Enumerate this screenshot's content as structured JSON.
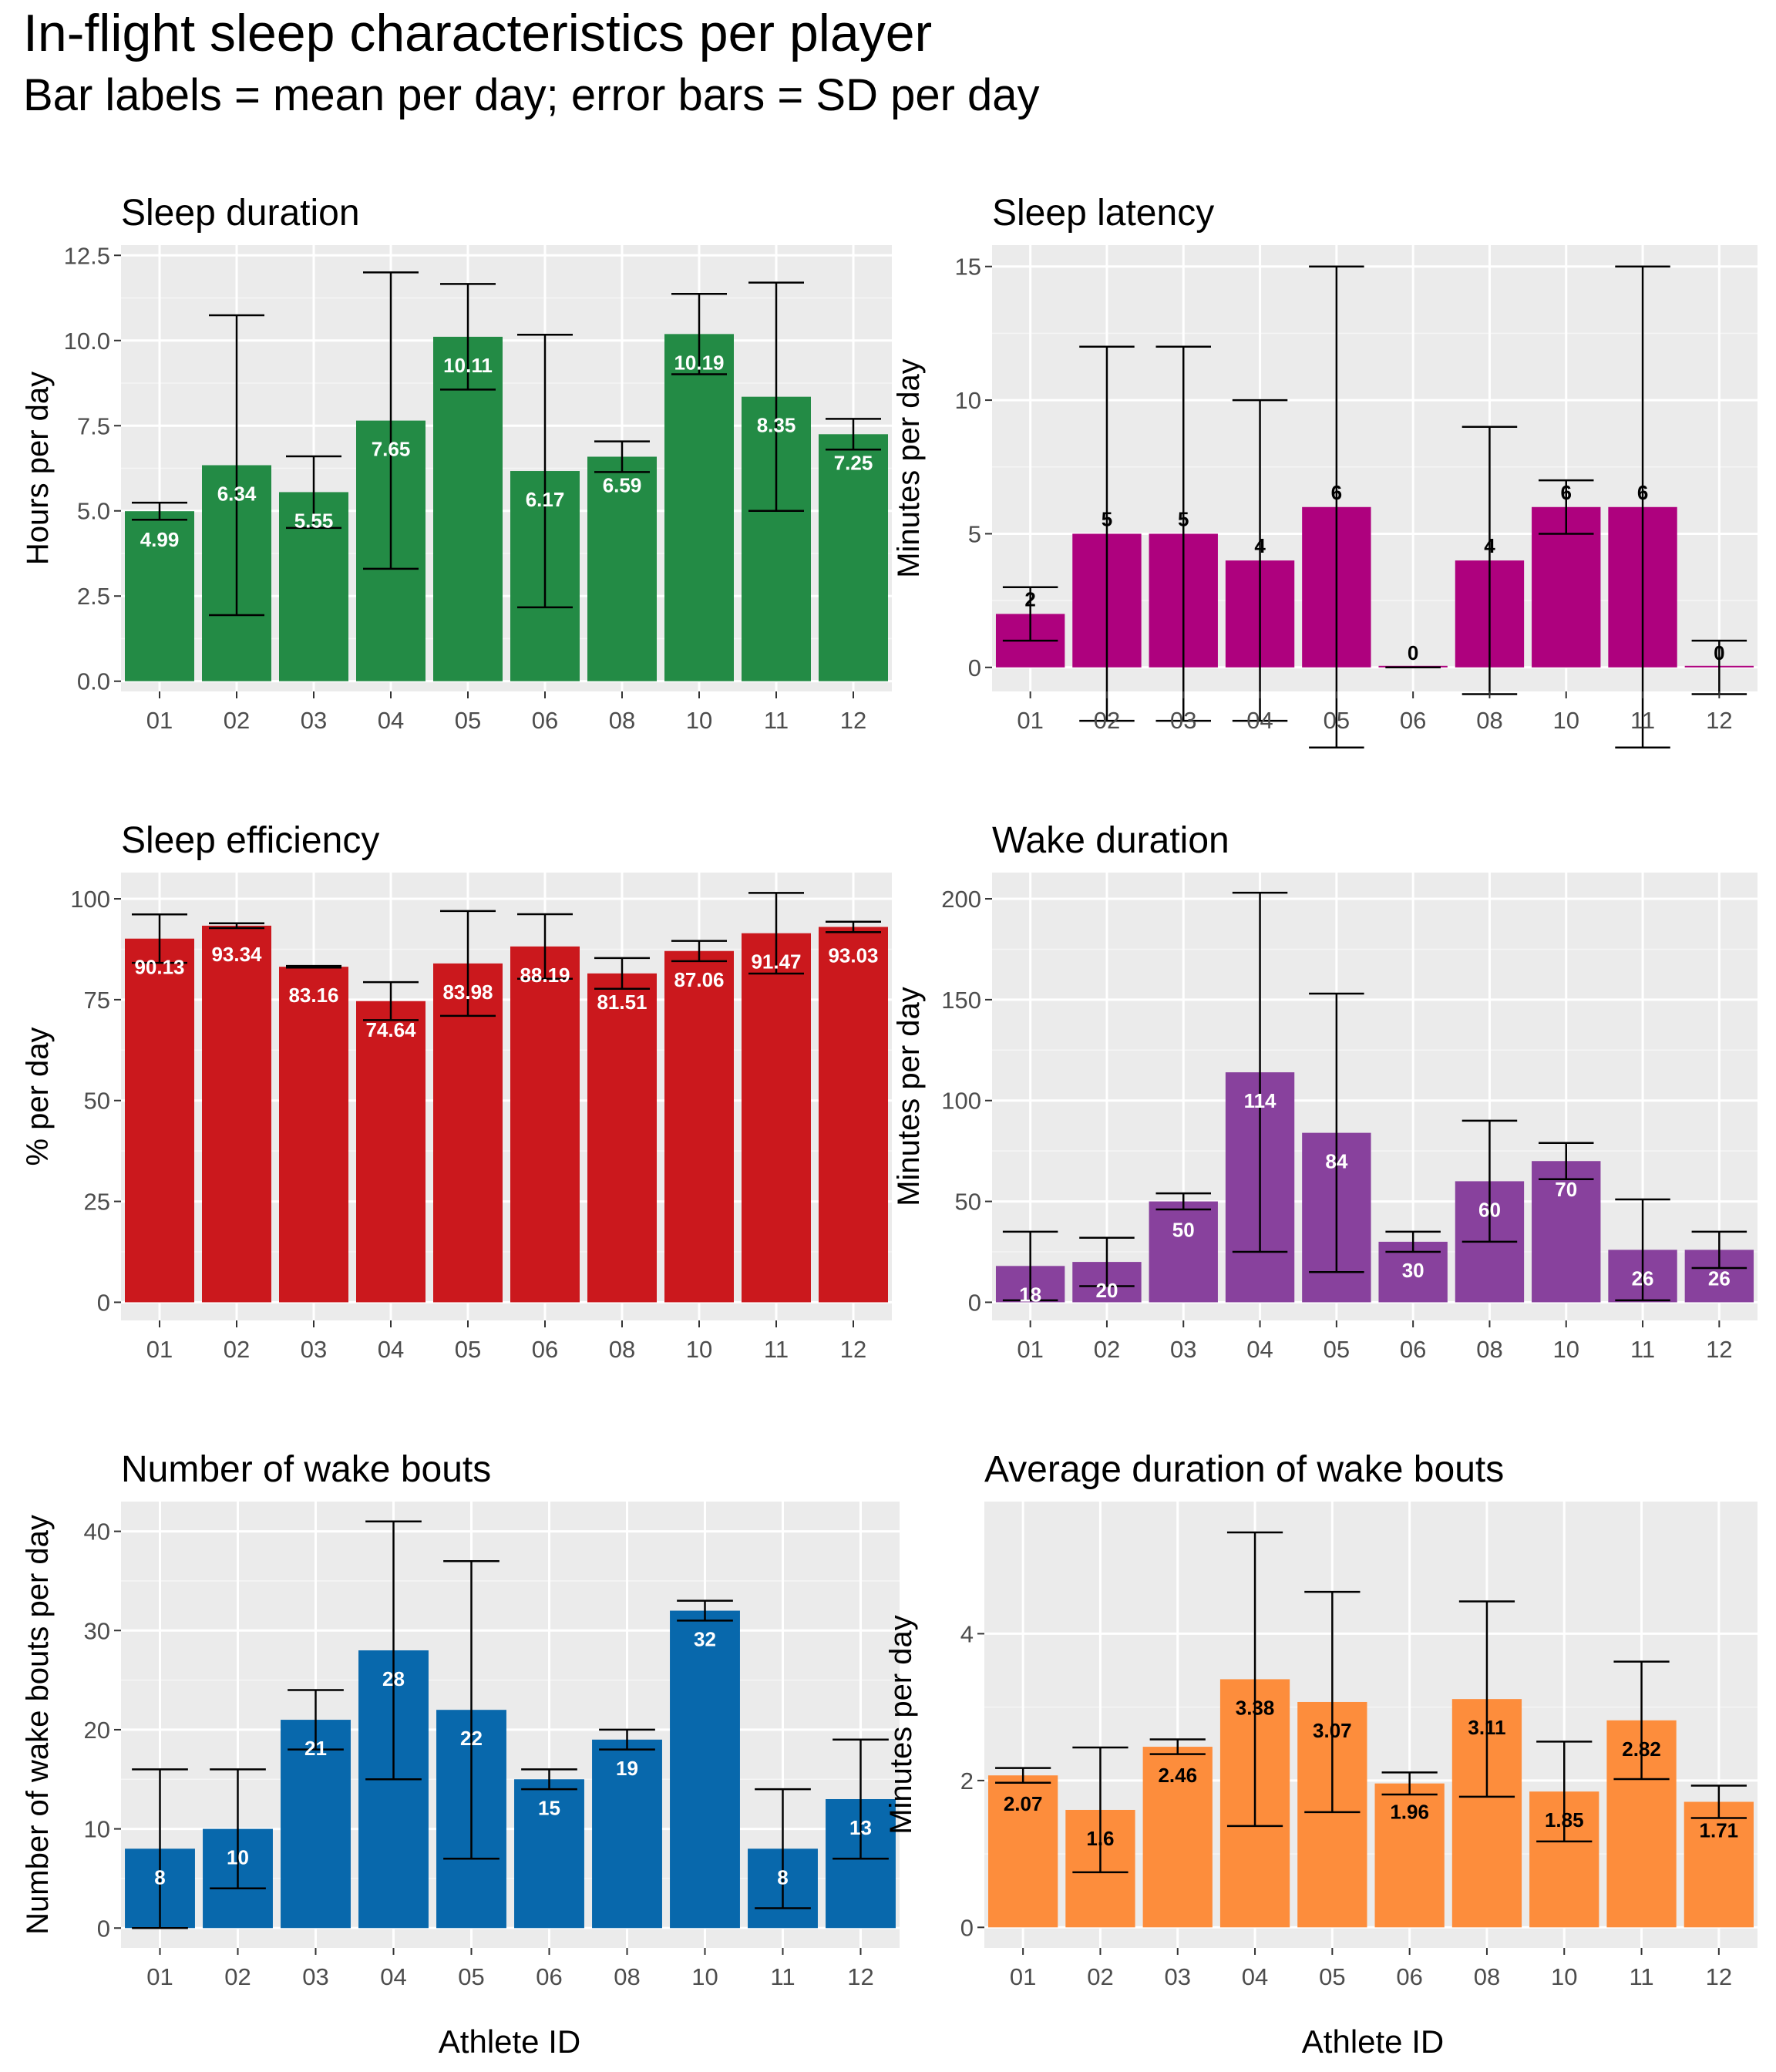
{
  "title": "In-flight sleep characteristics per player",
  "subtitle": "Bar labels = mean per day; error bars = SD per day",
  "x_axis_label": "Athlete ID",
  "chart_data": [
    {
      "type": "bar",
      "title": "Sleep duration",
      "ylabel": "Hours per day",
      "color": "#238B45",
      "label_color": "#ffffff",
      "categories": [
        "01",
        "02",
        "03",
        "04",
        "05",
        "06",
        "08",
        "10",
        "11",
        "12"
      ],
      "values": [
        4.99,
        6.34,
        5.55,
        7.65,
        10.11,
        6.17,
        6.59,
        10.19,
        8.35,
        7.25
      ],
      "value_labels": [
        "4.99",
        "6.34",
        "5.55",
        "7.65",
        "10.11",
        "6.17",
        "6.59",
        "10.19",
        "8.35",
        "7.25"
      ],
      "sd": [
        0.25,
        4.4,
        1.05,
        4.35,
        1.55,
        4.0,
        0.45,
        1.18,
        3.35,
        0.45
      ],
      "ylim": [
        -0.3,
        12.8
      ],
      "yticks": [
        0,
        2.5,
        5,
        7.5,
        10,
        12.5
      ],
      "ytick_labels": [
        "0.0",
        "2.5",
        "5.0",
        "7.5",
        "10.0",
        "12.5"
      ]
    },
    {
      "type": "bar",
      "title": "Sleep latency",
      "ylabel": "Minutes per day",
      "color": "#AE017E",
      "label_color": "#000000",
      "categories": [
        "01",
        "02",
        "03",
        "04",
        "05",
        "06",
        "08",
        "10",
        "11",
        "12"
      ],
      "values": [
        2,
        5,
        5,
        4,
        6,
        0,
        4,
        6,
        6,
        0
      ],
      "value_labels": [
        "2",
        "5",
        "5",
        "4",
        "6",
        "0",
        "4",
        "6",
        "6",
        "0"
      ],
      "sd": [
        1,
        7,
        7,
        6,
        9,
        0,
        5,
        1,
        9,
        1
      ],
      "ylim": [
        -0.9,
        15.8
      ],
      "yticks": [
        0,
        5,
        10,
        15
      ],
      "ytick_labels": [
        "0",
        "5",
        "10",
        "15"
      ]
    },
    {
      "type": "bar",
      "title": "Sleep efficiency",
      "ylabel": "% per day",
      "color": "#CB181D",
      "label_color": "#ffffff",
      "categories": [
        "01",
        "02",
        "03",
        "04",
        "05",
        "06",
        "08",
        "10",
        "11",
        "12"
      ],
      "values": [
        90.13,
        93.34,
        83.16,
        74.64,
        83.98,
        88.19,
        81.51,
        87.06,
        91.47,
        93.03
      ],
      "value_labels": [
        "90.13",
        "93.34",
        "83.16",
        "74.64",
        "83.98",
        "88.19",
        "81.51",
        "87.06",
        "91.47",
        "93.03"
      ],
      "sd": [
        6.0,
        0.6,
        0.2,
        4.7,
        13.0,
        8.0,
        3.8,
        2.5,
        10.0,
        1.3
      ],
      "ylim": [
        -4.5,
        106.5
      ],
      "yticks": [
        0,
        25,
        50,
        75,
        100
      ],
      "ytick_labels": [
        "0",
        "25",
        "50",
        "75",
        "100"
      ]
    },
    {
      "type": "bar",
      "title": "Wake duration",
      "ylabel": "Minutes per day",
      "color": "#88419D",
      "label_color": "#ffffff",
      "categories": [
        "01",
        "02",
        "03",
        "04",
        "05",
        "06",
        "08",
        "10",
        "11",
        "12"
      ],
      "values": [
        18,
        20,
        50,
        114,
        84,
        30,
        60,
        70,
        26,
        26
      ],
      "value_labels": [
        "18",
        "20",
        "50",
        "114",
        "84",
        "30",
        "60",
        "70",
        "26",
        "26"
      ],
      "sd": [
        17,
        12,
        4,
        89,
        69,
        5,
        30,
        9,
        25,
        9
      ],
      "ylim": [
        -9,
        213
      ],
      "yticks": [
        0,
        50,
        100,
        150,
        200
      ],
      "ytick_labels": [
        "0",
        "50",
        "100",
        "150",
        "200"
      ]
    },
    {
      "type": "bar",
      "title": "Number of wake bouts",
      "ylabel": "Number of wake bouts per day",
      "color": "#0868AC",
      "label_color": "#ffffff",
      "categories": [
        "01",
        "02",
        "03",
        "04",
        "05",
        "06",
        "08",
        "10",
        "11",
        "12"
      ],
      "values": [
        8,
        10,
        21,
        28,
        22,
        15,
        19,
        32,
        8,
        13
      ],
      "value_labels": [
        "8",
        "10",
        "21",
        "28",
        "22",
        "15",
        "19",
        "32",
        "8",
        "13"
      ],
      "sd": [
        8,
        6,
        3,
        13,
        15,
        1,
        1,
        1,
        6,
        6
      ],
      "ylim": [
        -2,
        43
      ],
      "yticks": [
        0,
        10,
        20,
        30,
        40
      ],
      "ytick_labels": [
        "0",
        "10",
        "20",
        "30",
        "40"
      ]
    },
    {
      "type": "bar",
      "title": "Average duration of wake bouts",
      "ylabel": "Minutes per day",
      "color": "#FD8D3C",
      "label_color": "#000000",
      "categories": [
        "01",
        "02",
        "03",
        "04",
        "05",
        "06",
        "08",
        "10",
        "11",
        "12"
      ],
      "values": [
        2.07,
        1.6,
        2.46,
        3.38,
        3.07,
        1.96,
        3.11,
        1.85,
        2.82,
        1.71
      ],
      "value_labels": [
        "2.07",
        "1.6",
        "2.46",
        "3.38",
        "3.07",
        "1.96",
        "3.11",
        "1.85",
        "2.82",
        "1.71"
      ],
      "sd": [
        0.1,
        0.85,
        0.1,
        2.0,
        1.5,
        0.15,
        1.33,
        0.68,
        0.8,
        0.22
      ],
      "ylim": [
        -0.28,
        5.8
      ],
      "yticks": [
        0,
        2,
        4
      ],
      "ytick_labels": [
        "0",
        "2",
        "4"
      ]
    }
  ]
}
